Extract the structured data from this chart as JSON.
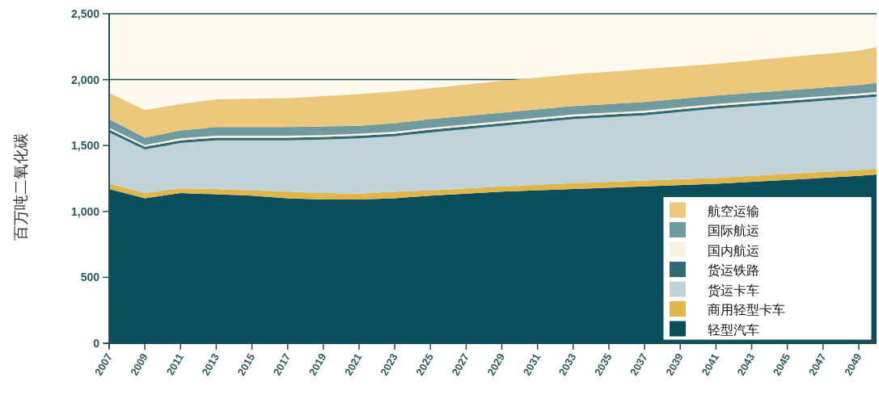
{
  "chart_data": {
    "type": "area",
    "stacked": true,
    "ylabel": "百万吨二氧化碳",
    "x": [
      2007,
      2009,
      2011,
      2013,
      2015,
      2017,
      2019,
      2021,
      2023,
      2025,
      2029,
      2033,
      2037,
      2041,
      2045,
      2049,
      2050
    ],
    "xlim": [
      2007,
      2050
    ],
    "xticks": [
      2007,
      2009,
      2011,
      2013,
      2015,
      2017,
      2019,
      2021,
      2023,
      2025,
      2027,
      2029,
      2031,
      2033,
      2035,
      2037,
      2039,
      2041,
      2043,
      2045,
      2047,
      2049
    ],
    "ylim": [
      0,
      2500
    ],
    "yticks": [
      0,
      500,
      {
        "value": 1000,
        "label": "1,000"
      },
      {
        "value": 1500,
        "label": "1,500"
      },
      {
        "value": 2000,
        "label": "2,000"
      },
      {
        "value": 2500,
        "label": "2,500"
      }
    ],
    "grid": "y",
    "legend": "bottom right",
    "series": [
      {
        "name": "轻型汽车",
        "color": "#0b4f5c",
        "values": [
          1170,
          1100,
          1140,
          1130,
          1120,
          1100,
          1090,
          1090,
          1100,
          1120,
          1150,
          1170,
          1190,
          1210,
          1240,
          1270,
          1280
        ]
      },
      {
        "name": "商用轻型卡车",
        "color": "#e0b64a",
        "values": [
          40,
          40,
          35,
          40,
          40,
          50,
          50,
          45,
          50,
          40,
          40,
          45,
          45,
          45,
          45,
          45,
          45
        ]
      },
      {
        "name": "货运卡车",
        "color": "#c0d4d8",
        "values": [
          390,
          330,
          345,
          370,
          380,
          390,
          405,
          420,
          420,
          440,
          460,
          485,
          495,
          525,
          535,
          545,
          545
        ]
      },
      {
        "name": "货运铁路",
        "color": "#2f6a75",
        "values": [
          20,
          20,
          20,
          20,
          20,
          20,
          20,
          20,
          20,
          20,
          20,
          20,
          20,
          20,
          20,
          20,
          20
        ]
      },
      {
        "name": "国内航运",
        "color": "#f9f1de",
        "values": [
          15,
          15,
          15,
          15,
          15,
          15,
          15,
          15,
          15,
          15,
          15,
          15,
          15,
          15,
          15,
          15,
          15
        ]
      },
      {
        "name": "国际航运",
        "color": "#6f9a9f",
        "values": [
          65,
          55,
          60,
          65,
          65,
          65,
          65,
          60,
          65,
          65,
          65,
          65,
          65,
          65,
          65,
          65,
          70
        ]
      },
      {
        "name": "航空运输",
        "color": "#ecc97a",
        "values": [
          200,
          210,
          200,
          210,
          215,
          220,
          230,
          240,
          240,
          235,
          240,
          240,
          250,
          240,
          250,
          260,
          270
        ]
      }
    ]
  }
}
